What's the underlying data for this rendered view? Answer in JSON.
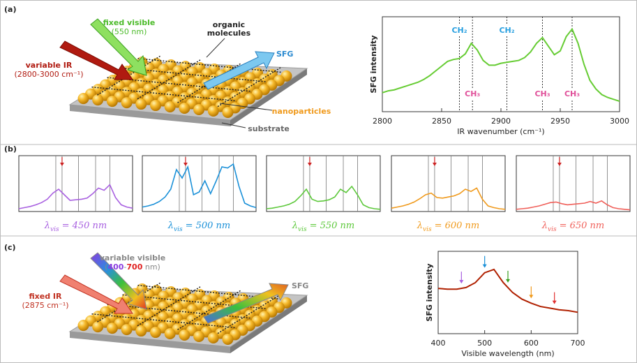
{
  "panel_labels": {
    "a": "(a)",
    "b": "(b)",
    "c": "(c)"
  },
  "diagram_a": {
    "fixed_visible": "fixed visible",
    "fixed_visible_wl": "(550 nm)",
    "variable_ir": "variable IR",
    "variable_ir_range": "(2800-3000 cm⁻¹)",
    "organic_1": "organic",
    "organic_2": "molecules",
    "sfg": "SFG",
    "nanoparticles": "nanoparticles",
    "substrate": "substrate"
  },
  "diagram_c": {
    "variable_visible": "variable visible",
    "range_open": "(",
    "range_start": "400",
    "range_sep": "-",
    "range_end": "700",
    "range_unit": " nm)",
    "fixed_ir": "fixed IR",
    "fixed_ir_wn": "(2875 cm⁻¹)",
    "sfg": "SFG"
  },
  "chart_data": [
    {
      "type": "line",
      "xlabel": "IR wavenumber (cm⁻¹)",
      "ylabel": "SFG intensity",
      "color": "#66cc33",
      "xlim": [
        2800,
        3000
      ],
      "ylim": [
        0,
        1
      ],
      "xticks": [
        2800,
        2850,
        2900,
        2950,
        3000
      ],
      "x": [
        2800,
        2805,
        2810,
        2815,
        2820,
        2825,
        2830,
        2835,
        2840,
        2845,
        2850,
        2855,
        2860,
        2865,
        2870,
        2875,
        2880,
        2885,
        2890,
        2895,
        2900,
        2905,
        2910,
        2915,
        2920,
        2925,
        2930,
        2935,
        2940,
        2945,
        2950,
        2955,
        2960,
        2965,
        2970,
        2975,
        2980,
        2985,
        2990,
        2995,
        3000
      ],
      "values": [
        0.2,
        0.22,
        0.23,
        0.25,
        0.27,
        0.29,
        0.31,
        0.34,
        0.38,
        0.43,
        0.48,
        0.53,
        0.55,
        0.56,
        0.61,
        0.72,
        0.65,
        0.54,
        0.49,
        0.49,
        0.51,
        0.52,
        0.53,
        0.54,
        0.57,
        0.63,
        0.72,
        0.78,
        0.69,
        0.6,
        0.64,
        0.79,
        0.87,
        0.72,
        0.5,
        0.33,
        0.24,
        0.18,
        0.15,
        0.13,
        0.11
      ],
      "annotations": [
        {
          "x": 2865,
          "text": "CH₂",
          "color": "#2aa0e0",
          "position": "top"
        },
        {
          "x": 2876,
          "text": "CH₃",
          "color": "#e0509a",
          "position": "bottom"
        },
        {
          "x": 2905,
          "text": "CH₂",
          "color": "#2aa0e0",
          "position": "top"
        },
        {
          "x": 2935,
          "text": "CH₃",
          "color": "#e0509a",
          "position": "bottom"
        },
        {
          "x": 2960,
          "text": "CH₃",
          "color": "#e0509a",
          "position": "bottom"
        }
      ]
    },
    {
      "type": "line",
      "title_symbol": "λ",
      "title_subscript": "vis",
      "title": "= 450 nm",
      "color": "#a860e0",
      "xlim": [
        2800,
        3000
      ],
      "ylim": [
        0,
        1
      ],
      "vlines": [
        2865,
        2876,
        2905,
        2935,
        2960
      ],
      "marker_x": 2876,
      "marker_color": "#cc2222",
      "x": [
        2800,
        2810,
        2820,
        2830,
        2840,
        2850,
        2860,
        2870,
        2880,
        2890,
        2900,
        2910,
        2920,
        2930,
        2940,
        2950,
        2960,
        2970,
        2980,
        2990,
        3000
      ],
      "values": [
        0.05,
        0.07,
        0.09,
        0.12,
        0.16,
        0.22,
        0.33,
        0.4,
        0.3,
        0.2,
        0.21,
        0.22,
        0.24,
        0.32,
        0.42,
        0.38,
        0.48,
        0.25,
        0.12,
        0.08,
        0.06
      ]
    },
    {
      "type": "line",
      "title_symbol": "λ",
      "title_subscript": "vis",
      "title": "= 500 nm",
      "color": "#1a90d8",
      "xlim": [
        2800,
        3000
      ],
      "ylim": [
        0,
        1
      ],
      "vlines": [
        2865,
        2876,
        2905,
        2935,
        2960
      ],
      "marker_x": 2876,
      "marker_color": "#cc2222",
      "x": [
        2800,
        2810,
        2820,
        2830,
        2840,
        2850,
        2860,
        2870,
        2880,
        2890,
        2900,
        2910,
        2920,
        2930,
        2940,
        2950,
        2960,
        2970,
        2980,
        2990,
        3000
      ],
      "values": [
        0.08,
        0.1,
        0.13,
        0.18,
        0.26,
        0.4,
        0.75,
        0.6,
        0.8,
        0.3,
        0.35,
        0.55,
        0.32,
        0.55,
        0.8,
        0.78,
        0.85,
        0.45,
        0.15,
        0.1,
        0.07
      ]
    },
    {
      "type": "line",
      "title_symbol": "λ",
      "title_subscript": "vis",
      "title": "= 550 nm",
      "color": "#5cc83a",
      "xlim": [
        2800,
        3000
      ],
      "ylim": [
        0,
        1
      ],
      "vlines": [
        2865,
        2876,
        2905,
        2935,
        2960
      ],
      "marker_x": 2876,
      "marker_color": "#cc2222",
      "x": [
        2800,
        2810,
        2820,
        2830,
        2840,
        2850,
        2860,
        2870,
        2880,
        2890,
        2900,
        2910,
        2920,
        2930,
        2940,
        2950,
        2960,
        2970,
        2980,
        2990,
        3000
      ],
      "values": [
        0.05,
        0.06,
        0.08,
        0.1,
        0.13,
        0.18,
        0.28,
        0.4,
        0.22,
        0.18,
        0.19,
        0.21,
        0.26,
        0.4,
        0.34,
        0.45,
        0.3,
        0.12,
        0.07,
        0.05,
        0.04
      ]
    },
    {
      "type": "line",
      "title_symbol": "λ",
      "title_subscript": "vis",
      "title": "= 600 nm",
      "color": "#f09a1c",
      "xlim": [
        2800,
        3000
      ],
      "ylim": [
        0,
        1
      ],
      "vlines": [
        2865,
        2876,
        2905,
        2935,
        2960
      ],
      "marker_x": 2876,
      "marker_color": "#cc2222",
      "x": [
        2800,
        2810,
        2820,
        2830,
        2840,
        2850,
        2860,
        2870,
        2880,
        2890,
        2900,
        2910,
        2920,
        2930,
        2940,
        2950,
        2960,
        2970,
        2980,
        2990,
        3000
      ],
      "values": [
        0.06,
        0.08,
        0.1,
        0.13,
        0.17,
        0.23,
        0.3,
        0.33,
        0.25,
        0.24,
        0.26,
        0.28,
        0.32,
        0.4,
        0.36,
        0.42,
        0.22,
        0.1,
        0.07,
        0.05,
        0.04
      ]
    },
    {
      "type": "line",
      "title_symbol": "λ",
      "title_subscript": "vis",
      "title": "= 650 nm",
      "color": "#f0605a",
      "xlim": [
        2800,
        3000
      ],
      "ylim": [
        0,
        1
      ],
      "vlines": [
        2865,
        2876,
        2905,
        2935,
        2960
      ],
      "marker_x": 2876,
      "marker_color": "#cc2222",
      "x": [
        2800,
        2810,
        2820,
        2830,
        2840,
        2850,
        2860,
        2870,
        2880,
        2890,
        2900,
        2910,
        2920,
        2930,
        2940,
        2950,
        2960,
        2970,
        2980,
        2990,
        3000
      ],
      "values": [
        0.04,
        0.05,
        0.06,
        0.08,
        0.1,
        0.13,
        0.16,
        0.17,
        0.14,
        0.12,
        0.13,
        0.14,
        0.15,
        0.18,
        0.15,
        0.19,
        0.12,
        0.07,
        0.05,
        0.04,
        0.03
      ]
    },
    {
      "type": "line",
      "xlabel": "Visible wavelength (nm)",
      "ylabel": "SFG intensity",
      "color": "#b02000",
      "xlim": [
        400,
        700
      ],
      "ylim": [
        0,
        1
      ],
      "xticks": [
        400,
        500,
        600,
        700
      ],
      "x": [
        400,
        420,
        440,
        460,
        480,
        500,
        520,
        540,
        560,
        580,
        600,
        620,
        640,
        660,
        680,
        700
      ],
      "values": [
        0.55,
        0.54,
        0.54,
        0.56,
        0.62,
        0.74,
        0.78,
        0.62,
        0.5,
        0.42,
        0.37,
        0.33,
        0.31,
        0.29,
        0.28,
        0.26
      ],
      "markers": [
        {
          "x": 450,
          "color": "#a860e0"
        },
        {
          "x": 500,
          "color": "#1a90d8"
        },
        {
          "x": 550,
          "color": "#3aa020"
        },
        {
          "x": 600,
          "color": "#f09a1c"
        },
        {
          "x": 650,
          "color": "#e03030"
        }
      ]
    }
  ]
}
